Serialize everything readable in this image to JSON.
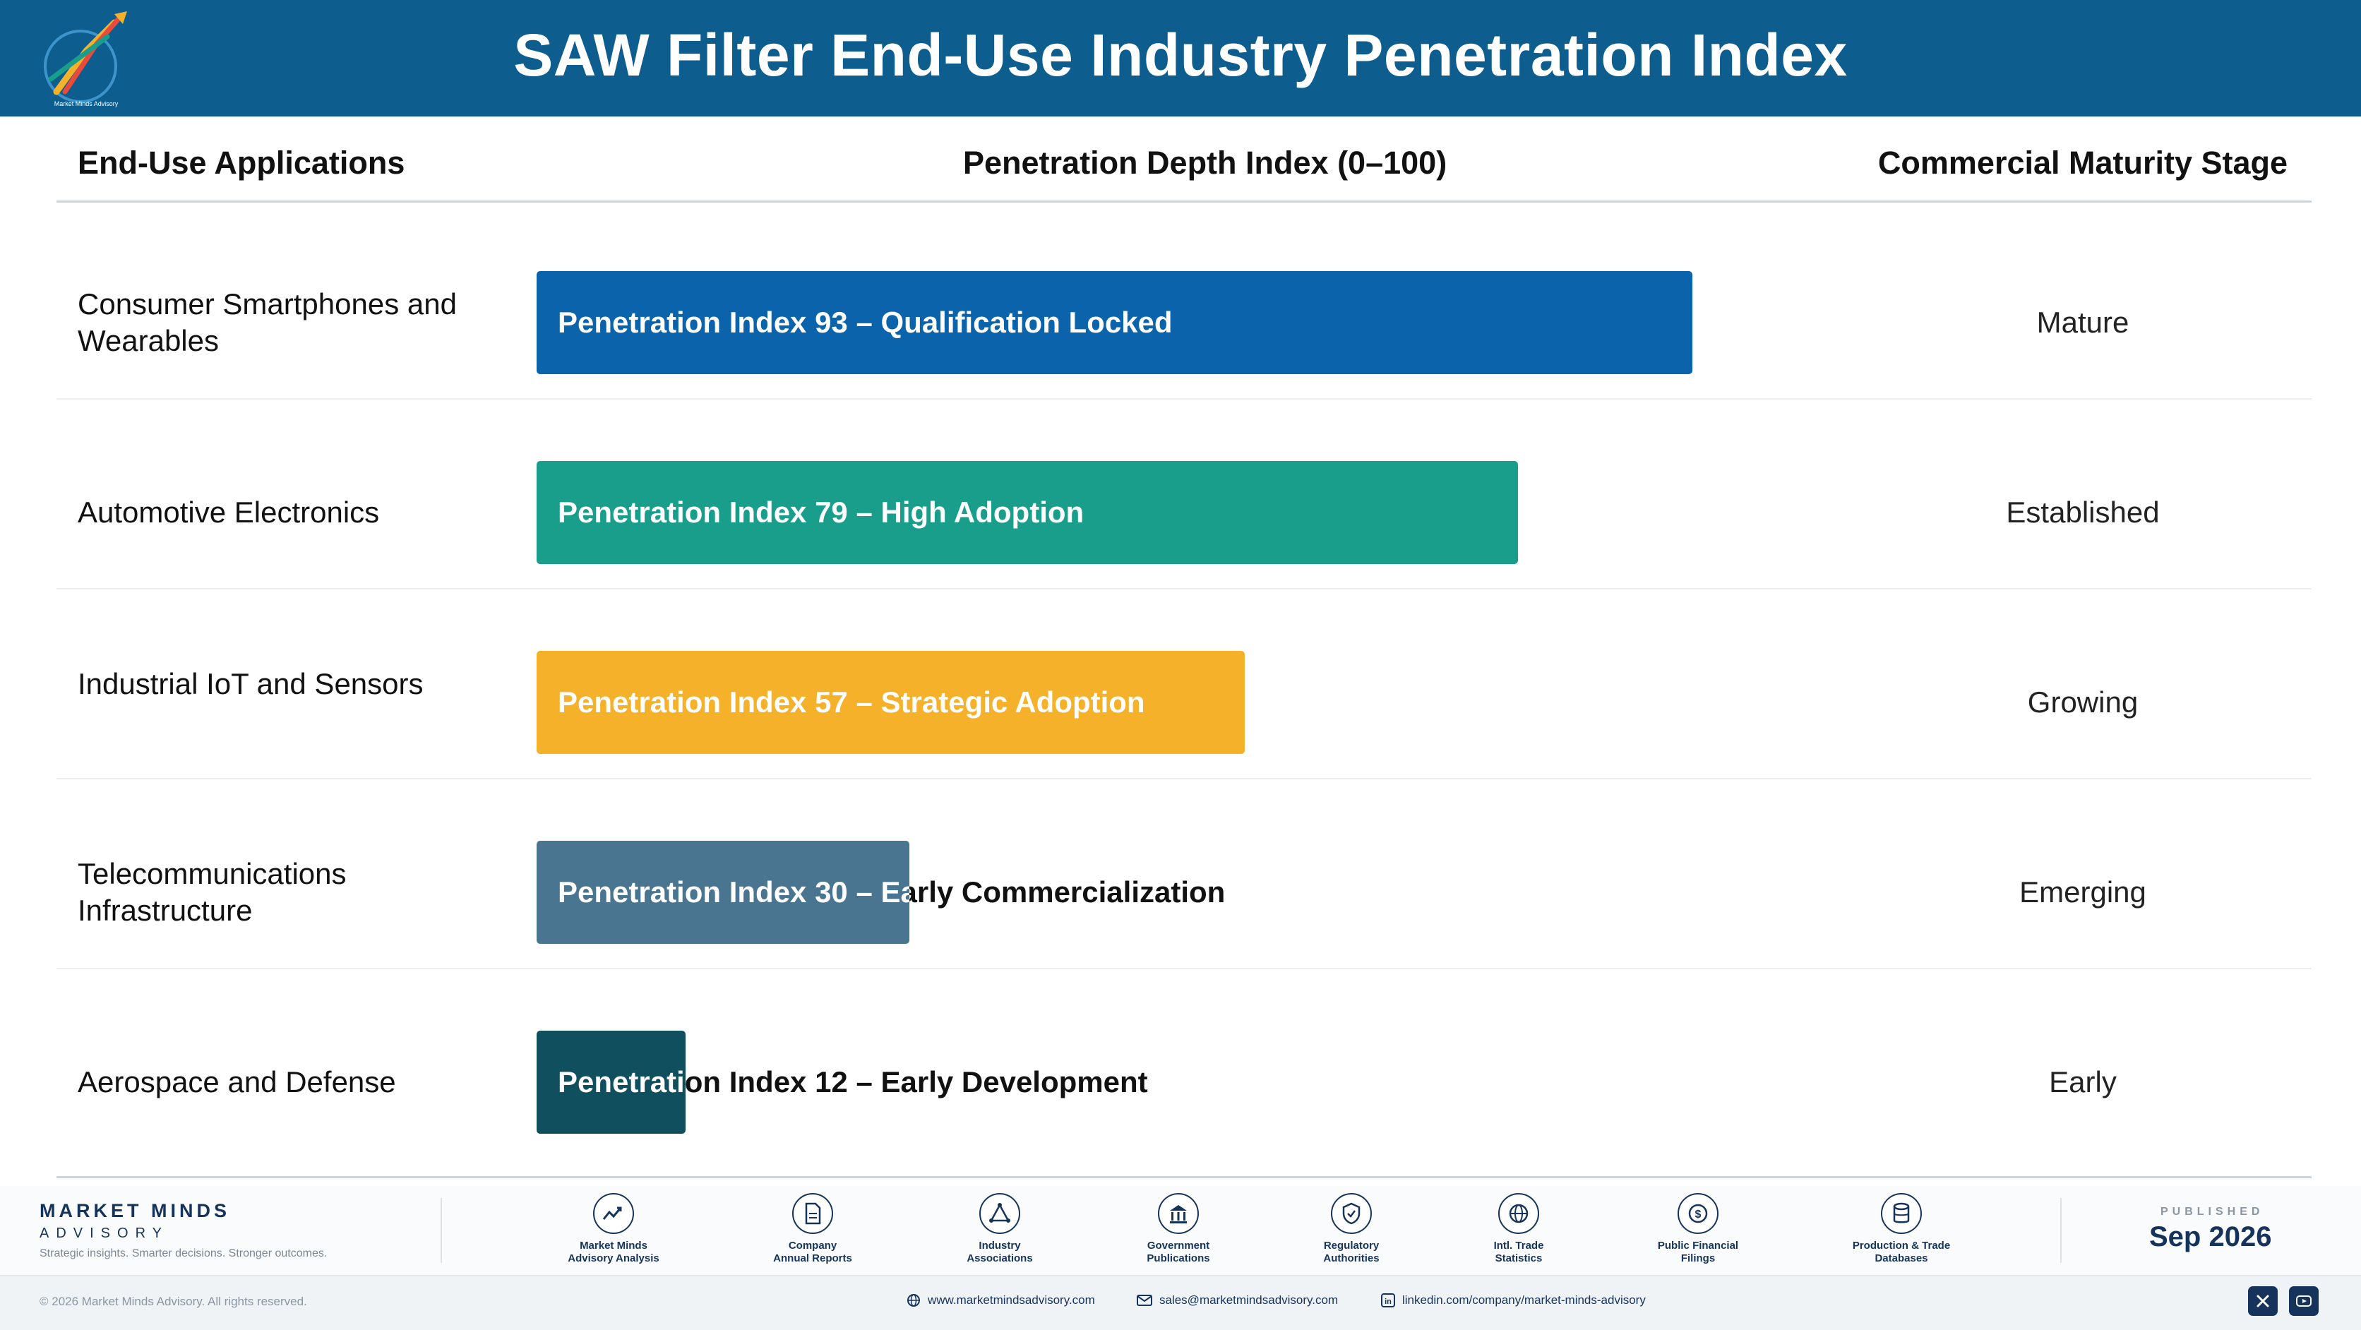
{
  "header": {
    "title": "SAW Filter End-Use Industry Penetration Index"
  },
  "columns": {
    "applications": "End-Use Applications",
    "index": "Penetration Depth Index (0–100)",
    "stage": "Commercial Maturity Stage"
  },
  "chart_data": {
    "type": "bar",
    "orientation": "horizontal",
    "title": "SAW Filter End-Use Industry Penetration Index",
    "xlabel": "Penetration Depth Index (0–100)",
    "xlim": [
      0,
      100
    ],
    "categories": [
      "Consumer Smartphones and Wearables",
      "Automotive Electronics",
      "Industrial IoT and Sensors",
      "Telecommunications Infrastructure",
      "Aerospace and Defense"
    ],
    "values": [
      93,
      79,
      57,
      30,
      12
    ],
    "rows": [
      {
        "application": "Consumer Smartphones and Wearables",
        "value": 93,
        "bar_label": "Penetration Index 93 – Qualification Locked",
        "stage": "Mature",
        "color": "#0a63ab"
      },
      {
        "application": "Automotive Electronics",
        "value": 79,
        "bar_label": "Penetration Index 79 – High Adoption",
        "stage": "Established",
        "color": "#1a9e8c"
      },
      {
        "application": "Industrial IoT and Sensors",
        "value": 57,
        "bar_label": "Penetration Index 57 – Strategic Adoption",
        "stage": "Growing",
        "color": "#f5b129"
      },
      {
        "application": "Telecommunications Infrastructure",
        "value": 30,
        "bar_label": "Penetration Index 30 – Early Commercialization",
        "stage": "Emerging",
        "color": "#4a7590"
      },
      {
        "application": "Aerospace and Defense",
        "value": 12,
        "bar_label": "Penetration Index 12 – Early Development",
        "stage": "Early",
        "color": "#0f4f5e"
      }
    ]
  },
  "footer": {
    "brand_name": "MARKET MINDS",
    "brand_sub": "ADVISORY",
    "brand_tag": "Strategic insights. Smarter decisions. Stronger outcomes.",
    "sources": [
      {
        "line1": "Market Minds",
        "line2": "Advisory Analysis",
        "icon": "chart-line-icon"
      },
      {
        "line1": "Company",
        "line2": "Annual Reports",
        "icon": "document-icon"
      },
      {
        "line1": "Industry",
        "line2": "Associations",
        "icon": "network-icon"
      },
      {
        "line1": "Government",
        "line2": "Publications",
        "icon": "government-building-icon"
      },
      {
        "line1": "Regulatory",
        "line2": "Authorities",
        "icon": "shield-check-icon"
      },
      {
        "line1": "Intl. Trade",
        "line2": "Statistics",
        "icon": "globe-icon"
      },
      {
        "line1": "Public Financial",
        "line2": "Filings",
        "icon": "dollar-coin-icon"
      },
      {
        "line1": "Production & Trade",
        "line2": "Databases",
        "icon": "database-icon"
      }
    ],
    "published_label": "PUBLISHED",
    "published_date": "Sep 2026",
    "copyright": "© 2026 Market Minds Advisory. All rights reserved.",
    "website": "www.marketmindsadvisory.com",
    "email": "sales@marketmindsadvisory.com",
    "linkedin": "linkedin.com/company/market-minds-advisory"
  },
  "colors": {
    "header_bg": "#0d5d8f",
    "brand_navy": "#16335b"
  }
}
